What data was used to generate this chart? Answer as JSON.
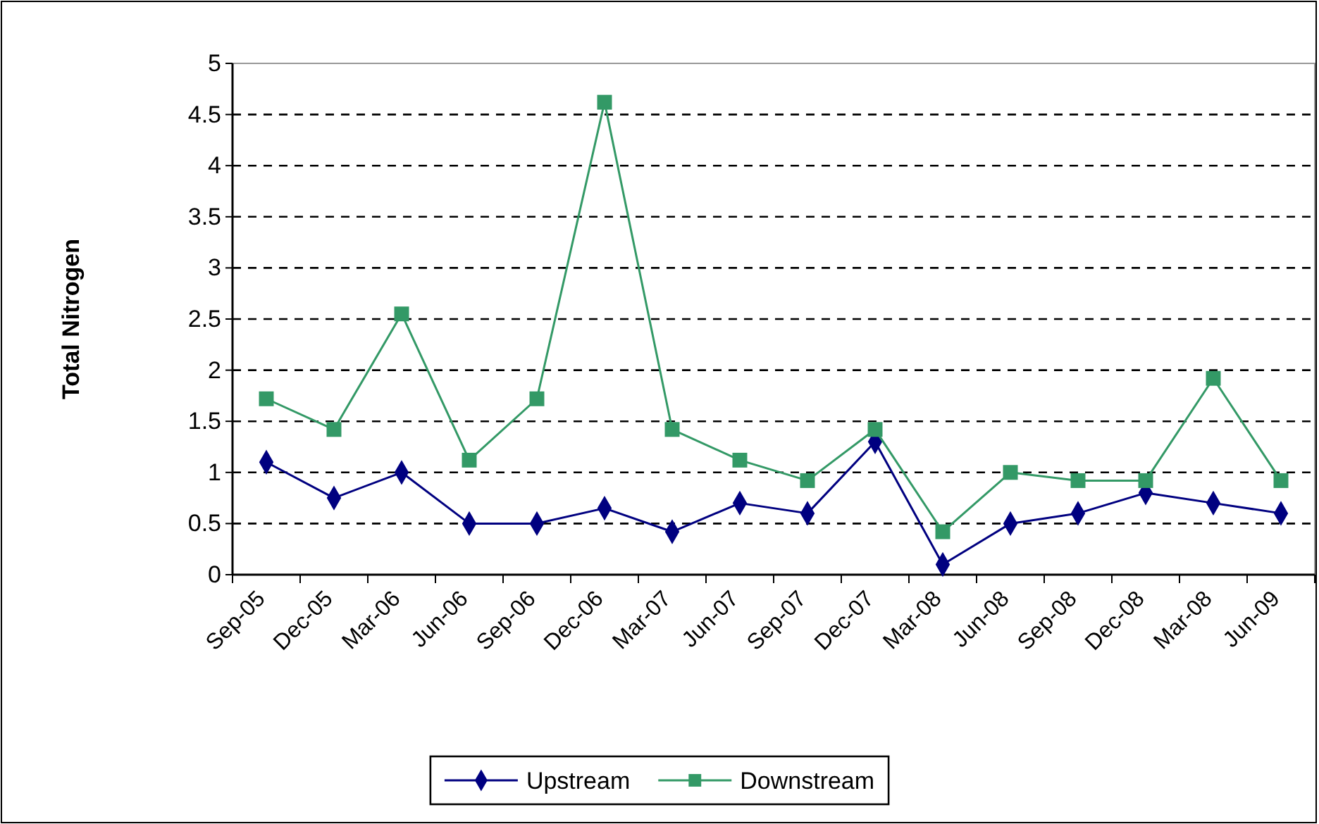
{
  "chart_data": {
    "type": "line",
    "ylabel": "Total Nitrogen",
    "categories": [
      "Sep-05",
      "Dec-05",
      "Mar-06",
      "Jun-06",
      "Sep-06",
      "Dec-06",
      "Mar-07",
      "Jun-07",
      "Sep-07",
      "Dec-07",
      "Mar-08",
      "Jun-08",
      "Sep-08",
      "Dec-08",
      "Mar-08",
      "Jun-09"
    ],
    "series": [
      {
        "name": "Upstream",
        "color": "#000080",
        "marker": "diamond",
        "values": [
          1.1,
          0.75,
          1.0,
          0.5,
          0.5,
          0.65,
          0.42,
          0.7,
          0.6,
          1.3,
          0.1,
          0.5,
          0.6,
          0.8,
          0.7,
          0.6
        ]
      },
      {
        "name": "Downstream",
        "color": "#339966",
        "marker": "square",
        "values": [
          1.72,
          1.42,
          2.55,
          1.12,
          1.72,
          4.62,
          1.42,
          1.12,
          0.92,
          1.42,
          0.42,
          1.0,
          0.92,
          0.92,
          1.92,
          0.92
        ]
      }
    ],
    "ylim": [
      0,
      5
    ],
    "yticks": [
      0,
      0.5,
      1,
      1.5,
      2,
      2.5,
      3,
      3.5,
      4,
      4.5,
      5
    ],
    "grid": "y",
    "legend": "bottom"
  }
}
